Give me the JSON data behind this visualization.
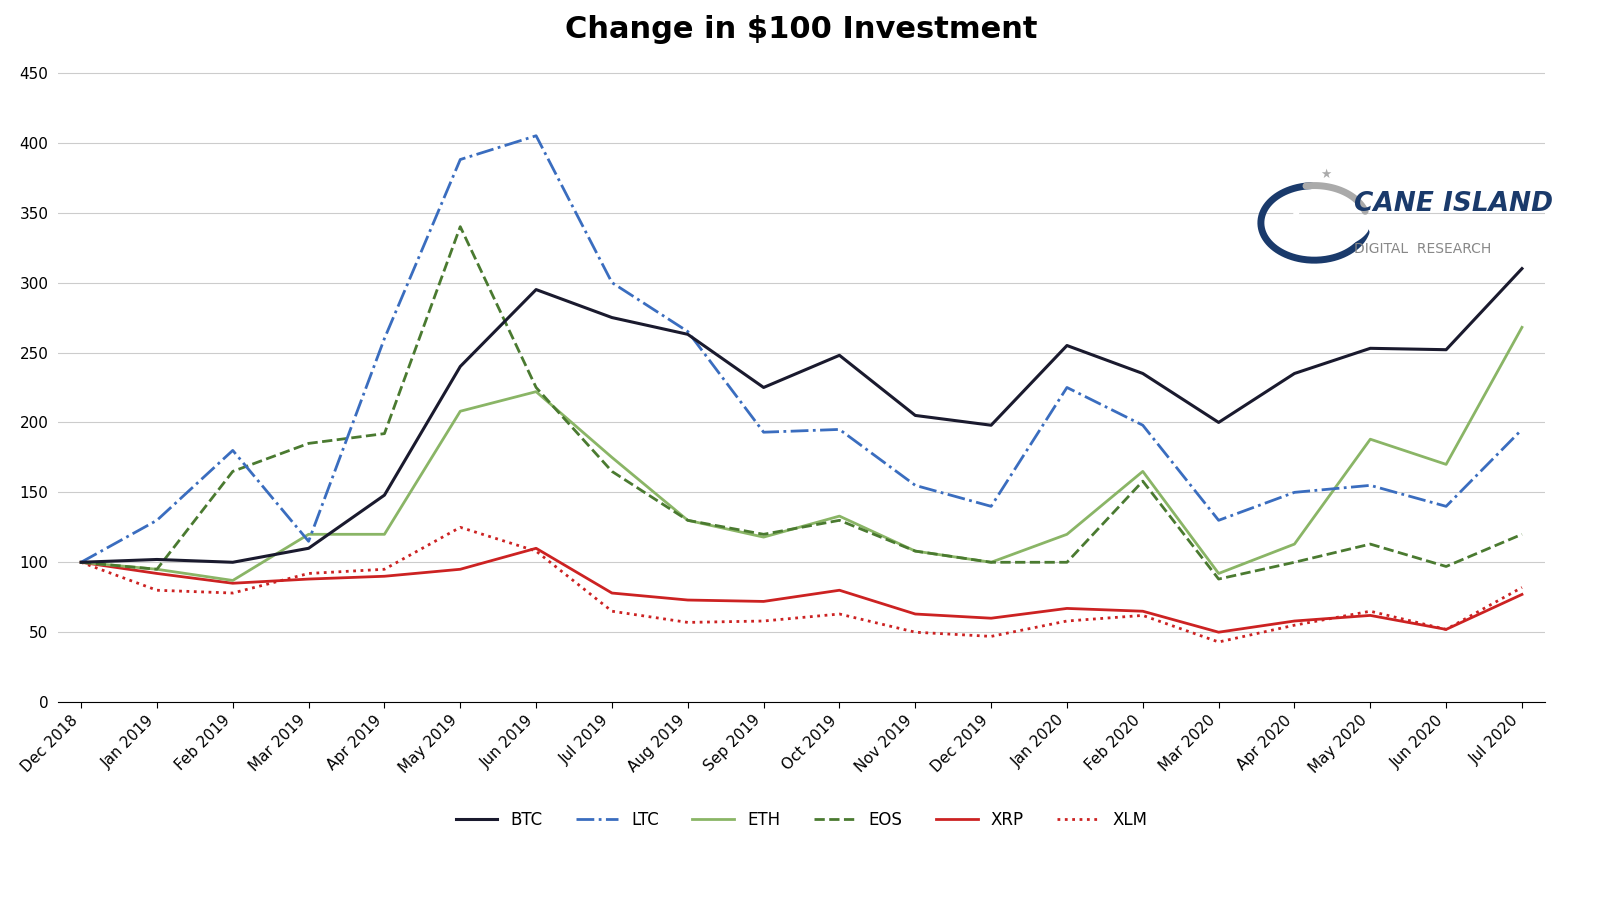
{
  "title": "Change in $100 Investment",
  "x_labels": [
    "Dec 2018",
    "Jan 2019",
    "Feb 2019",
    "Mar 2019",
    "Apr 2019",
    "May 2019",
    "Jun 2019",
    "Jul 2019",
    "Aug 2019",
    "Sep 2019",
    "Oct 2019",
    "Nov 2019",
    "Dec 2019",
    "Jan 2020",
    "Feb 2020",
    "Mar 2020",
    "Apr 2020",
    "May 2020",
    "Jun 2020",
    "Jul 2020"
  ],
  "BTC": [
    100,
    102,
    100,
    110,
    148,
    240,
    295,
    275,
    263,
    225,
    248,
    205,
    198,
    255,
    235,
    200,
    235,
    253,
    252,
    310
  ],
  "LTC": [
    100,
    130,
    180,
    115,
    260,
    388,
    405,
    300,
    265,
    193,
    195,
    155,
    140,
    225,
    198,
    130,
    150,
    155,
    140,
    195
  ],
  "ETH": [
    100,
    95,
    87,
    120,
    120,
    208,
    222,
    175,
    130,
    118,
    133,
    108,
    100,
    120,
    165,
    92,
    113,
    188,
    170,
    268
  ],
  "EOS": [
    100,
    95,
    165,
    185,
    192,
    340,
    225,
    165,
    130,
    120,
    130,
    108,
    100,
    100,
    158,
    88,
    100,
    113,
    97,
    120
  ],
  "XRP": [
    100,
    92,
    85,
    88,
    90,
    95,
    110,
    78,
    73,
    72,
    80,
    63,
    60,
    67,
    65,
    50,
    58,
    62,
    52,
    77
  ],
  "XLM": [
    100,
    80,
    78,
    92,
    95,
    125,
    108,
    65,
    57,
    58,
    63,
    50,
    47,
    58,
    62,
    43,
    55,
    65,
    52,
    82
  ],
  "yticks": [
    0,
    50,
    100,
    150,
    200,
    250,
    300,
    350,
    400,
    450
  ],
  "ylim": [
    0,
    460
  ],
  "BTC_color": "#1a1a2e",
  "LTC_color": "#3a6dbf",
  "ETH_color": "#8ab566",
  "EOS_color": "#4a7a30",
  "XRP_color": "#cc2222",
  "XLM_color": "#cc2222",
  "background_color": "#ffffff",
  "grid_color": "#cccccc",
  "title_fontsize": 22,
  "legend_fontsize": 12,
  "tick_fontsize": 11,
  "logo_main_text": "CANE ISLAND",
  "logo_sub_text": "DIGITAL  RESEARCH"
}
